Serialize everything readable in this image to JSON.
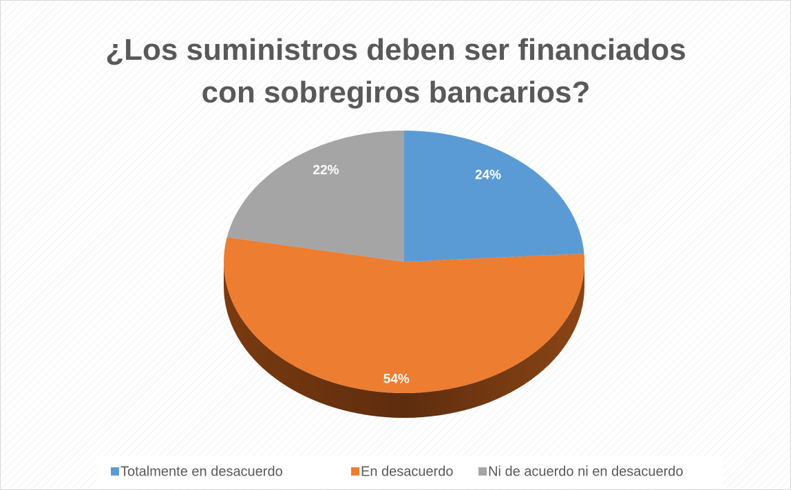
{
  "chart_data": {
    "type": "pie",
    "title": "¿Los suministros deben ser financiados con sobregiros bancarios?",
    "categories": [
      "Totalmente en desacuerdo",
      "En desacuerdo",
      "Ni de acuerdo ni en desacuerdo"
    ],
    "values": [
      24,
      54,
      22
    ],
    "value_labels": [
      "24%",
      "54%",
      "22%"
    ],
    "colors": [
      "#5b9bd5",
      "#ed7d31",
      "#a5a5a5"
    ],
    "legend": "bottom"
  }
}
